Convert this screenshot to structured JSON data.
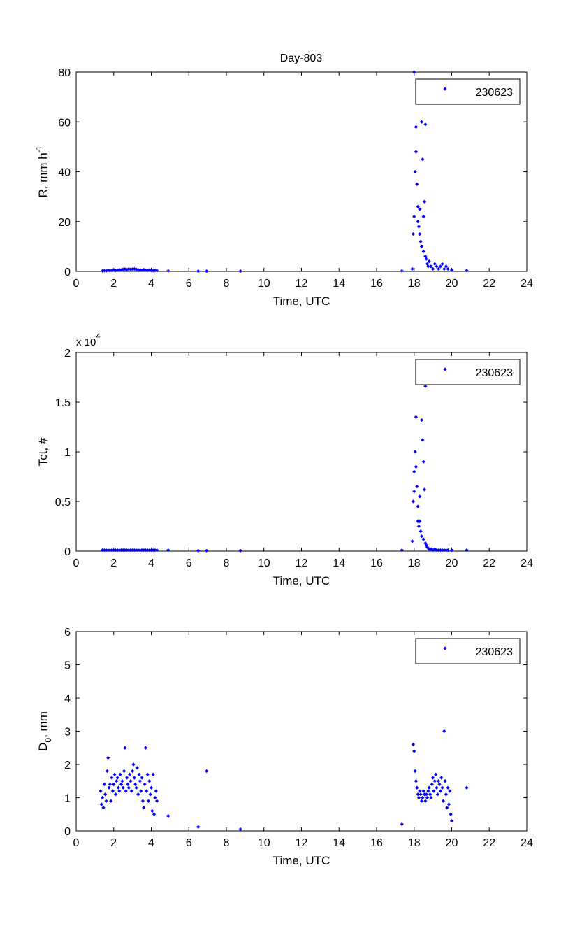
{
  "figure": {
    "title": "Day-803"
  },
  "chart_data": [
    {
      "type": "scatter",
      "title": "Day-803",
      "xlabel": "Time, UTC",
      "ylabel": "R, mm h",
      "ylabel_sup": "-1",
      "xlim": [
        0,
        24
      ],
      "ylim": [
        0,
        80
      ],
      "xticks": [
        0,
        2,
        4,
        6,
        8,
        10,
        12,
        14,
        16,
        18,
        20,
        22,
        24
      ],
      "yticks": [
        0,
        20,
        40,
        60,
        80
      ],
      "exponent_label": "",
      "legend": {
        "position": "top-right",
        "entries": [
          "230623"
        ]
      },
      "color": "#0000ff",
      "series": [
        {
          "name": "230623",
          "x": [
            1.4,
            1.5,
            1.6,
            1.7,
            1.8,
            1.9,
            2.0,
            2.1,
            2.2,
            2.3,
            2.4,
            2.5,
            2.6,
            2.7,
            2.8,
            2.9,
            3.0,
            3.1,
            3.2,
            3.3,
            3.4,
            3.5,
            3.6,
            3.7,
            3.8,
            3.9,
            4.0,
            4.1,
            4.2,
            4.3,
            4.9,
            6.5,
            6.95,
            8.75,
            17.35,
            17.9,
            17.95,
            18.0,
            18.0,
            18.05,
            18.1,
            18.1,
            18.15,
            18.2,
            18.2,
            18.25,
            18.3,
            18.3,
            18.35,
            18.4,
            18.4,
            18.45,
            18.5,
            18.5,
            18.55,
            18.6,
            18.6,
            18.65,
            18.7,
            18.75,
            18.8,
            18.9,
            19.0,
            19.1,
            19.2,
            19.3,
            19.4,
            19.5,
            19.6,
            19.7,
            19.8,
            20.0,
            20.8
          ],
          "y": [
            0.2,
            0.3,
            0.2,
            0.5,
            0.3,
            0.4,
            0.6,
            0.4,
            0.5,
            0.7,
            0.6,
            0.8,
            0.9,
            0.7,
            1.0,
            0.8,
            0.9,
            1.0,
            0.8,
            0.7,
            0.6,
            0.5,
            0.7,
            0.5,
            0.4,
            0.6,
            0.4,
            0.3,
            0.4,
            0.3,
            0.2,
            0.1,
            0.1,
            0.1,
            0.2,
            1.0,
            15,
            22,
            80,
            40,
            58,
            48,
            35,
            26,
            20,
            18,
            25,
            15,
            12,
            60,
            10,
            45,
            8,
            22,
            28,
            59,
            6,
            5,
            3,
            2,
            4,
            2,
            1,
            3,
            2,
            1,
            2,
            3,
            1,
            2,
            1,
            0.5,
            0.3
          ]
        }
      ]
    },
    {
      "type": "scatter",
      "title": "",
      "xlabel": "Time, UTC",
      "ylabel": "Tct, #",
      "ylabel_sup": "",
      "xlim": [
        0,
        24
      ],
      "ylim": [
        0,
        2
      ],
      "xticks": [
        0,
        2,
        4,
        6,
        8,
        10,
        12,
        14,
        16,
        18,
        20,
        22,
        24
      ],
      "yticks": [
        0,
        0.5,
        1,
        1.5,
        2
      ],
      "exponent_label": "x 10",
      "exponent_sup": "4",
      "legend": {
        "position": "top-right",
        "entries": [
          "230623"
        ]
      },
      "color": "#0000ff",
      "series": [
        {
          "name": "230623",
          "x": [
            1.4,
            1.5,
            1.6,
            1.7,
            1.8,
            1.9,
            2.0,
            2.1,
            2.2,
            2.3,
            2.4,
            2.5,
            2.6,
            2.7,
            2.8,
            2.9,
            3.0,
            3.1,
            3.2,
            3.3,
            3.4,
            3.5,
            3.6,
            3.7,
            3.8,
            3.9,
            4.0,
            4.1,
            4.2,
            4.3,
            4.9,
            6.5,
            6.95,
            8.75,
            17.35,
            17.9,
            17.95,
            18.0,
            18.0,
            18.05,
            18.1,
            18.1,
            18.15,
            18.2,
            18.2,
            18.25,
            18.3,
            18.3,
            18.35,
            18.4,
            18.4,
            18.45,
            18.5,
            18.5,
            18.55,
            18.6,
            18.6,
            18.65,
            18.7,
            18.75,
            18.8,
            18.9,
            19.0,
            19.1,
            19.2,
            19.3,
            19.4,
            19.5,
            19.6,
            19.7,
            19.8,
            20.0,
            20.8
          ],
          "y": [
            0.01,
            0.01,
            0.01,
            0.01,
            0.01,
            0.01,
            0.01,
            0.01,
            0.01,
            0.01,
            0.01,
            0.01,
            0.01,
            0.01,
            0.01,
            0.01,
            0.01,
            0.01,
            0.01,
            0.01,
            0.01,
            0.01,
            0.01,
            0.01,
            0.01,
            0.01,
            0.01,
            0.01,
            0.01,
            0.01,
            0.01,
            0.005,
            0.005,
            0.005,
            0.01,
            0.1,
            0.5,
            0.8,
            0.6,
            1.0,
            1.35,
            0.85,
            0.65,
            0.45,
            0.3,
            0.25,
            0.55,
            0.3,
            0.2,
            1.32,
            0.15,
            1.12,
            0.12,
            0.9,
            0.62,
            1.66,
            0.08,
            0.06,
            0.04,
            0.03,
            0.02,
            0.02,
            0.01,
            0.02,
            0.01,
            0.01,
            0.01,
            0.01,
            0.01,
            0.01,
            0.01,
            0.01,
            0.01
          ]
        }
      ]
    },
    {
      "type": "scatter",
      "title": "",
      "xlabel": "Time, UTC",
      "ylabel": "D",
      "ylabel_sub": "0",
      "ylabel_tail": ", mm",
      "xlim": [
        0,
        24
      ],
      "ylim": [
        0,
        6
      ],
      "xticks": [
        0,
        2,
        4,
        6,
        8,
        10,
        12,
        14,
        16,
        18,
        20,
        22,
        24
      ],
      "yticks": [
        0,
        1,
        2,
        3,
        4,
        5,
        6
      ],
      "exponent_label": "",
      "legend": {
        "position": "top-right",
        "entries": [
          "230623"
        ]
      },
      "color": "#0000ff",
      "series": [
        {
          "name": "230623",
          "x": [
            1.3,
            1.35,
            1.4,
            1.45,
            1.5,
            1.55,
            1.6,
            1.65,
            1.7,
            1.75,
            1.8,
            1.85,
            1.9,
            1.95,
            2.0,
            2.05,
            2.1,
            2.15,
            2.2,
            2.25,
            2.3,
            2.35,
            2.4,
            2.45,
            2.5,
            2.55,
            2.6,
            2.65,
            2.7,
            2.75,
            2.8,
            2.85,
            2.9,
            2.95,
            3.0,
            3.05,
            3.1,
            3.15,
            3.2,
            3.25,
            3.3,
            3.35,
            3.4,
            3.45,
            3.5,
            3.55,
            3.6,
            3.65,
            3.7,
            3.75,
            3.8,
            3.85,
            3.9,
            3.95,
            4.0,
            4.05,
            4.1,
            4.15,
            4.2,
            4.25,
            4.3,
            4.9,
            6.5,
            6.95,
            8.75,
            17.35,
            17.95,
            18.0,
            18.05,
            18.1,
            18.15,
            18.2,
            18.25,
            18.3,
            18.35,
            18.4,
            18.45,
            18.5,
            18.55,
            18.6,
            18.65,
            18.7,
            18.75,
            18.8,
            18.85,
            18.9,
            18.95,
            19.0,
            19.05,
            19.1,
            19.15,
            19.2,
            19.25,
            19.3,
            19.35,
            19.4,
            19.45,
            19.5,
            19.55,
            19.6,
            19.65,
            19.7,
            19.75,
            19.8,
            19.85,
            19.9,
            19.95,
            20.0,
            20.8
          ],
          "y": [
            1.2,
            0.8,
            1.0,
            0.7,
            1.4,
            1.1,
            0.9,
            1.8,
            2.2,
            1.3,
            1.4,
            0.9,
            1.6,
            1.2,
            1.4,
            1.7,
            1.1,
            1.5,
            1.6,
            1.3,
            1.2,
            1.7,
            1.4,
            1.5,
            1.3,
            1.8,
            2.5,
            1.2,
            1.6,
            1.4,
            1.3,
            1.7,
            1.5,
            1.2,
            1.8,
            2.0,
            1.6,
            1.4,
            1.3,
            1.9,
            1.1,
            1.7,
            1.5,
            1.2,
            1.6,
            0.9,
            0.7,
            1.4,
            2.5,
            1.2,
            1.7,
            0.9,
            1.5,
            1.1,
            1.3,
            0.6,
            1.7,
            0.5,
            1.0,
            1.2,
            0.9,
            0.45,
            0.12,
            1.8,
            0.05,
            0.2,
            2.6,
            2.4,
            1.8,
            1.5,
            1.3,
            1.1,
            1.0,
            1.2,
            1.1,
            0.9,
            1.0,
            1.2,
            1.1,
            0.9,
            1.1,
            1.0,
            1.2,
            1.3,
            1.1,
            1.0,
            1.4,
            1.6,
            1.2,
            1.5,
            1.7,
            1.3,
            1.1,
            1.5,
            1.4,
            1.2,
            1.6,
            1.3,
            0.9,
            3.0,
            1.5,
            1.1,
            0.7,
            1.3,
            0.8,
            1.2,
            0.5,
            0.3,
            1.3
          ]
        }
      ]
    }
  ]
}
